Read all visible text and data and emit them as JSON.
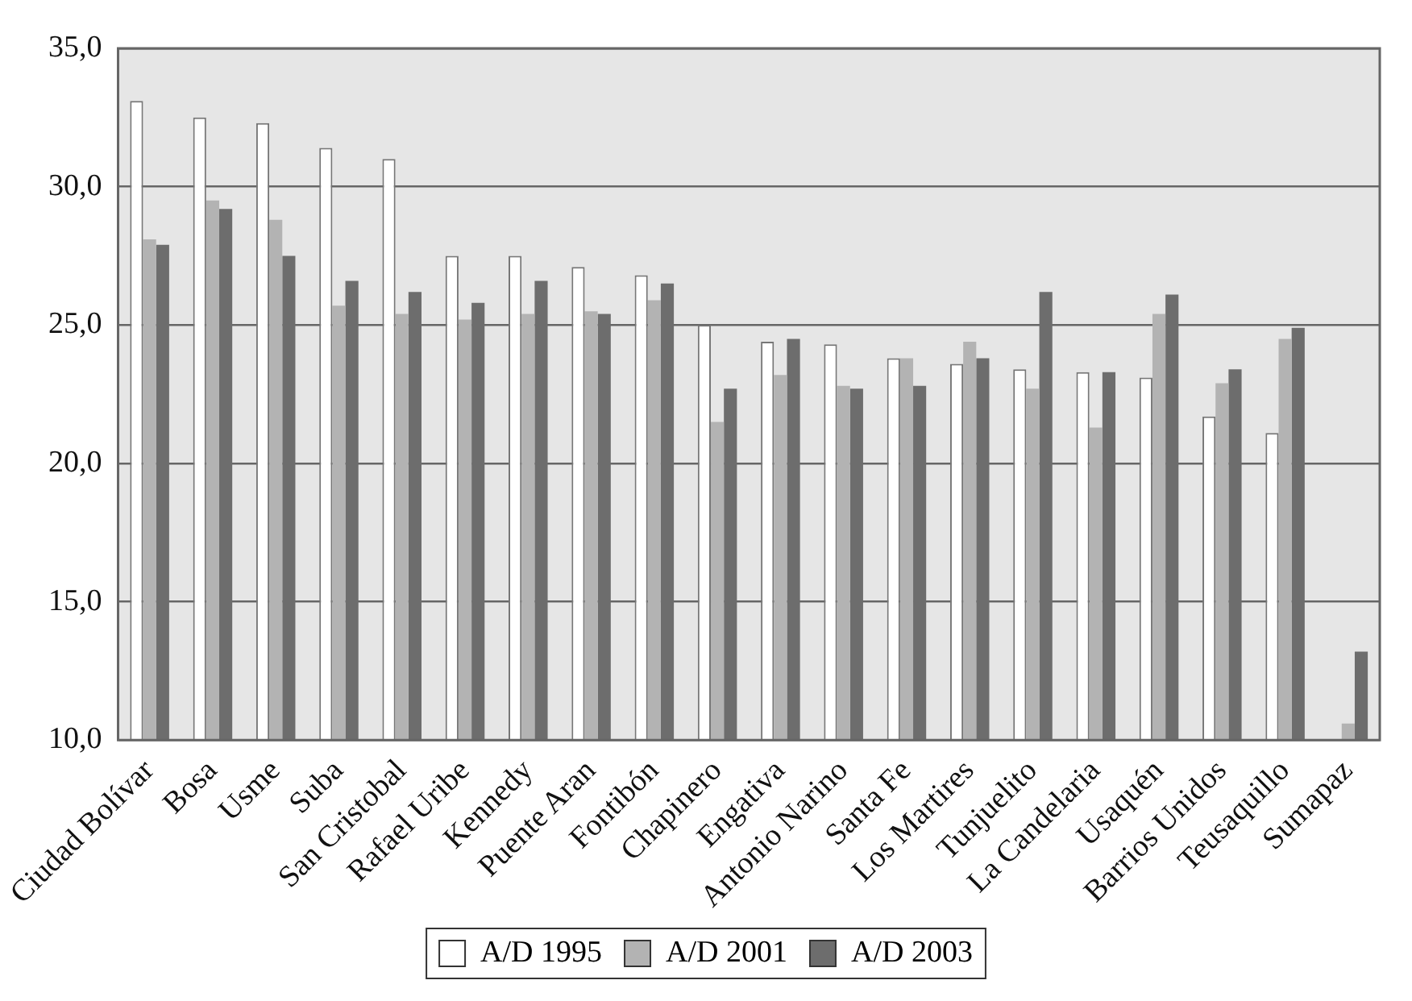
{
  "chart_data": {
    "type": "bar",
    "categories": [
      "Ciudad Bolívar",
      "Bosa",
      "Usme",
      "Suba",
      "San Cristobal",
      "Rafael Uribe",
      "Kennedy",
      "Puente Aran",
      "Fontibón",
      "Chapinero",
      "Engativa",
      "Antonio Narino",
      "Santa Fe",
      "Los Martires",
      "Tunjuelito",
      "La Candelaria",
      "Usaquén",
      "Barrios Unidos",
      "Teusaquillo",
      "Sumapaz"
    ],
    "series": [
      {
        "name": "A/D 1995",
        "color": "#ffffff",
        "values": [
          33.1,
          32.5,
          32.3,
          31.4,
          31.0,
          27.5,
          27.5,
          27.1,
          26.8,
          25.0,
          24.4,
          24.3,
          23.8,
          23.6,
          23.4,
          23.3,
          23.1,
          21.7,
          21.1,
          null
        ]
      },
      {
        "name": "A/D 2001",
        "color": "#b3b3b3",
        "values": [
          28.1,
          29.5,
          28.8,
          25.7,
          25.4,
          25.2,
          25.4,
          25.5,
          25.9,
          21.5,
          23.2,
          22.8,
          23.8,
          24.4,
          22.7,
          21.3,
          25.4,
          22.9,
          24.5,
          10.6
        ]
      },
      {
        "name": "A/D 2003",
        "color": "#6d6d6d",
        "values": [
          27.9,
          29.2,
          27.5,
          26.6,
          26.2,
          25.8,
          26.6,
          25.4,
          26.5,
          22.7,
          24.5,
          22.7,
          22.8,
          23.8,
          26.2,
          23.3,
          26.1,
          23.4,
          24.9,
          13.2
        ]
      }
    ],
    "ylim": [
      10,
      35
    ],
    "yticks": [
      {
        "value": 10,
        "label": "10,0"
      },
      {
        "value": 15,
        "label": "15,0"
      },
      {
        "value": 20,
        "label": "20,0"
      },
      {
        "value": 25,
        "label": "25,0"
      },
      {
        "value": 30,
        "label": "30,0"
      },
      {
        "value": 35,
        "label": "35,0"
      }
    ],
    "grid": "y",
    "legend": "bottom"
  }
}
